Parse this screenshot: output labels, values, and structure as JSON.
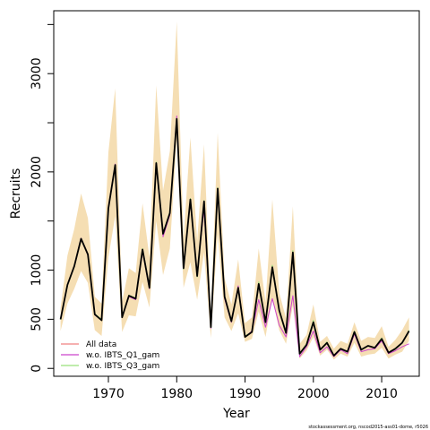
{
  "chart_data": {
    "type": "line",
    "xlabel": "Year",
    "ylabel": "Recruits",
    "xlim": [
      1962,
      2015.5
    ],
    "ylim": [
      -80,
      3640
    ],
    "x_ticks": [
      1970,
      1980,
      1990,
      2000,
      2010
    ],
    "y_ticks": [
      0,
      500,
      1000,
      2000,
      3000
    ],
    "y_minor_ticks": [
      1500,
      2500,
      3500
    ],
    "grid": false,
    "legend_position": "bottom-left",
    "credit": "stockassessment.org, nscod2015-ass01-dome, r5026",
    "x": [
      1963,
      1964,
      1965,
      1966,
      1967,
      1968,
      1969,
      1970,
      1971,
      1972,
      1973,
      1974,
      1975,
      1976,
      1977,
      1978,
      1979,
      1980,
      1981,
      1982,
      1983,
      1984,
      1985,
      1986,
      1987,
      1988,
      1989,
      1990,
      1991,
      1992,
      1993,
      1994,
      1995,
      1996,
      1997,
      1998,
      1999,
      2000,
      2001,
      2002,
      2003,
      2004,
      2005,
      2006,
      2007,
      2008,
      2009,
      2010,
      2011,
      2012,
      2013,
      2014
    ],
    "band": {
      "color": "#f5deb3",
      "lower": [
        380,
        660,
        810,
        990,
        870,
        390,
        330,
        1130,
        1550,
        370,
        540,
        530,
        880,
        620,
        1500,
        950,
        1220,
        2330,
        820,
        1080,
        700,
        1180,
        310,
        1370,
        520,
        380,
        560,
        270,
        300,
        580,
        320,
        720,
        390,
        250,
        640,
        100,
        180,
        320,
        130,
        190,
        90,
        150,
        120,
        260,
        120,
        140,
        150,
        210,
        100,
        140,
        170,
        280
      ],
      "upper": [
        610,
        1150,
        1420,
        1780,
        1530,
        730,
        660,
        2200,
        2850,
        680,
        1020,
        970,
        1680,
        1130,
        2880,
        1810,
        2210,
        3530,
        1320,
        2350,
        1300,
        2280,
        560,
        2400,
        920,
        650,
        1110,
        460,
        520,
        1220,
        670,
        1720,
        770,
        510,
        1650,
        250,
        340,
        650,
        270,
        330,
        200,
        280,
        250,
        470,
        280,
        320,
        310,
        430,
        220,
        290,
        390,
        520
      ]
    },
    "series": [
      {
        "name": "All data",
        "color": "#f08080",
        "values": [
          500,
          850,
          1040,
          1320,
          1160,
          550,
          490,
          1630,
          2070,
          520,
          740,
          710,
          1210,
          820,
          2090,
          1370,
          1580,
          2540,
          1020,
          1720,
          940,
          1700,
          420,
          1830,
          730,
          480,
          820,
          320,
          370,
          860,
          470,
          1030,
          590,
          360,
          1180,
          150,
          240,
          470,
          190,
          260,
          130,
          200,
          170,
          370,
          190,
          230,
          210,
          300,
          160,
          200,
          260,
          380
        ]
      },
      {
        "name": "w.o. IBTS_Q1_gam",
        "color": "#cc44cc",
        "values": [
          505,
          855,
          1045,
          1325,
          1150,
          545,
          490,
          1640,
          2080,
          520,
          730,
          700,
          1190,
          810,
          2080,
          1340,
          1560,
          2570,
          1040,
          1700,
          960,
          1630,
          410,
          1820,
          710,
          470,
          840,
          320,
          380,
          700,
          420,
          710,
          440,
          320,
          740,
          120,
          220,
          380,
          160,
          220,
          120,
          190,
          150,
          350,
          170,
          190,
          200,
          280,
          150,
          180,
          220,
          250
        ]
      },
      {
        "name": "w.o. IBTS_Q3_gam",
        "color": "#99e07a",
        "values": [
          495,
          845,
          1035,
          1315,
          1160,
          555,
          500,
          1620,
          2060,
          525,
          745,
          715,
          1220,
          830,
          2100,
          1380,
          1590,
          2530,
          1010,
          1730,
          930,
          1710,
          420,
          1840,
          740,
          490,
          810,
          330,
          370,
          880,
          480,
          1050,
          600,
          370,
          1200,
          150,
          250,
          490,
          190,
          270,
          130,
          200,
          170,
          380,
          190,
          230,
          210,
          310,
          160,
          200,
          260,
          390
        ]
      },
      {
        "name": "",
        "color": "#000000",
        "values": [
          500,
          850,
          1040,
          1320,
          1160,
          550,
          490,
          1630,
          2070,
          520,
          740,
          710,
          1210,
          820,
          2090,
          1370,
          1580,
          2540,
          1020,
          1720,
          940,
          1700,
          420,
          1830,
          730,
          480,
          820,
          320,
          370,
          860,
          470,
          1030,
          590,
          360,
          1180,
          150,
          240,
          470,
          190,
          260,
          130,
          200,
          170,
          370,
          190,
          230,
          210,
          300,
          160,
          200,
          260,
          380
        ]
      }
    ]
  }
}
